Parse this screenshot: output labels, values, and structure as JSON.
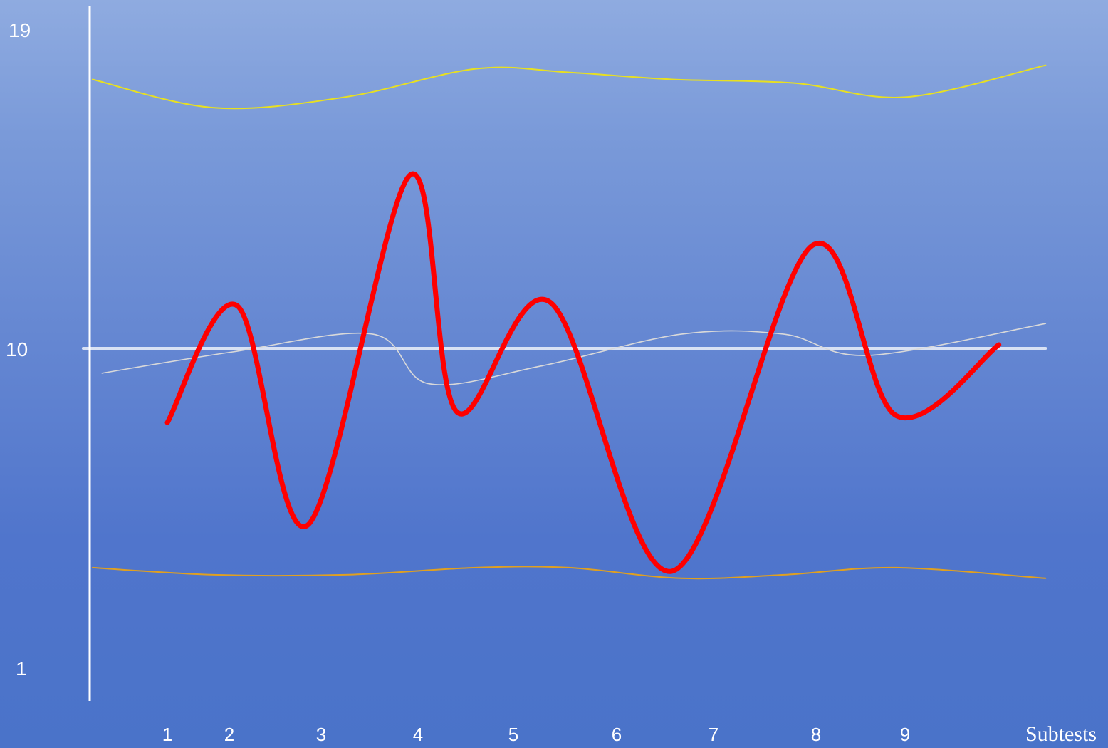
{
  "chart_data": {
    "type": "line",
    "title": "",
    "xlabel": "Subtests",
    "ylabel": "",
    "ylim": [
      1,
      19
    ],
    "y_ticks": [
      "19",
      "10",
      "1"
    ],
    "categories": [
      "1",
      "2",
      "3",
      "4",
      "5",
      "6",
      "7",
      "8",
      "9"
    ],
    "grid": false,
    "colors": {
      "score_line": "#ff0000",
      "mean_line": "#d9d9d9",
      "upper_band": "#e8e020",
      "lower_band": "#e0a020",
      "reference_line": "#ffffff",
      "axis": "#ffffff"
    },
    "series": [
      {
        "x": [
          1,
          1.75,
          2.5,
          3.6,
          4.1,
          5.1,
          6.4,
          7.9,
          8.8,
          9.9
        ],
        "values": [
          7.9,
          11.2,
          5.0,
          14.9,
          8.2,
          11.3,
          3.7,
          12.9,
          8.1,
          10.1
        ]
      },
      {
        "x": [
          0.3,
          1.7,
          3.2,
          3.8,
          5.0,
          6.5,
          7.6,
          8.5,
          10.4
        ],
        "values": [
          9.3,
          9.9,
          10.4,
          9.0,
          9.5,
          10.4,
          10.4,
          9.8,
          10.7
        ]
      },
      {
        "x": [
          0.2,
          1.5,
          2.9,
          4.3,
          5.3,
          6.4,
          7.7,
          8.9,
          10.4
        ],
        "values": [
          17.6,
          16.8,
          17.1,
          17.9,
          17.8,
          17.6,
          17.5,
          17.1,
          18.0
        ]
      },
      {
        "x": [
          0.2,
          1.5,
          2.9,
          4.3,
          5.3,
          6.5,
          7.6,
          8.8,
          10.4
        ],
        "values": [
          3.8,
          3.6,
          3.6,
          3.8,
          3.8,
          3.5,
          3.6,
          3.8,
          3.5
        ]
      },
      {
        "x": [
          0.1,
          10.4
        ],
        "values": [
          10.0,
          10.0
        ]
      }
    ]
  }
}
